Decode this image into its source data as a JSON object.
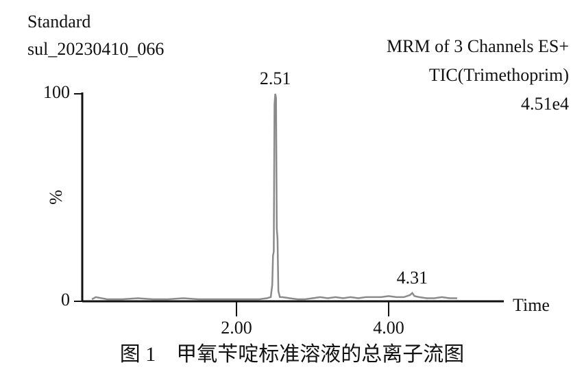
{
  "chart_data": {
    "type": "line",
    "title": "Standard",
    "subtitle": "sul_20230410_066",
    "annotations": [
      "MRM of 3 Channels ES+",
      "TIC(Trimethoprim)",
      "4.51e4"
    ],
    "caption": "图 1　甲氧苄啶标准溶液的总离子流图",
    "x_label": "Time",
    "y_label": "%",
    "xlim": [
      0,
      5.5
    ],
    "ylim": [
      0,
      100
    ],
    "xticks": [
      {
        "value": 2,
        "label": "2.00"
      },
      {
        "value": 4,
        "label": "4.00"
      }
    ],
    "yticks": [
      0,
      100
    ],
    "peak_labels": [
      2.51,
      4.31
    ],
    "x": [
      0.1,
      0.15,
      0.3,
      0.5,
      0.7,
      0.9,
      1.1,
      1.3,
      1.5,
      1.7,
      1.9,
      2.1,
      2.3,
      2.4,
      2.45,
      2.47,
      2.48,
      2.49,
      2.5,
      2.51,
      2.52,
      2.53,
      2.54,
      2.55,
      2.57,
      2.6,
      2.7,
      2.8,
      2.9,
      3.0,
      3.1,
      3.2,
      3.3,
      3.4,
      3.5,
      3.6,
      3.7,
      3.8,
      3.9,
      4.0,
      4.1,
      4.2,
      4.28,
      4.31,
      4.34,
      4.4,
      4.5,
      4.6,
      4.7,
      4.8,
      4.9
    ],
    "series": [
      {
        "name": "TIC",
        "color": "#8a8a8a",
        "values": [
          1,
          2,
          1,
          1,
          1.5,
          1,
          1,
          1.5,
          1,
          1,
          1,
          1,
          1,
          1.5,
          2,
          8,
          22,
          24,
          95,
          100,
          98,
          35,
          30,
          5,
          2,
          2,
          1.5,
          1,
          1,
          1.5,
          2,
          1.5,
          2,
          1.5,
          2,
          1.5,
          2,
          2,
          2,
          2.5,
          2,
          2,
          3,
          4,
          2.5,
          2,
          1.5,
          1.5,
          2,
          1.5,
          1.5
        ]
      }
    ]
  }
}
